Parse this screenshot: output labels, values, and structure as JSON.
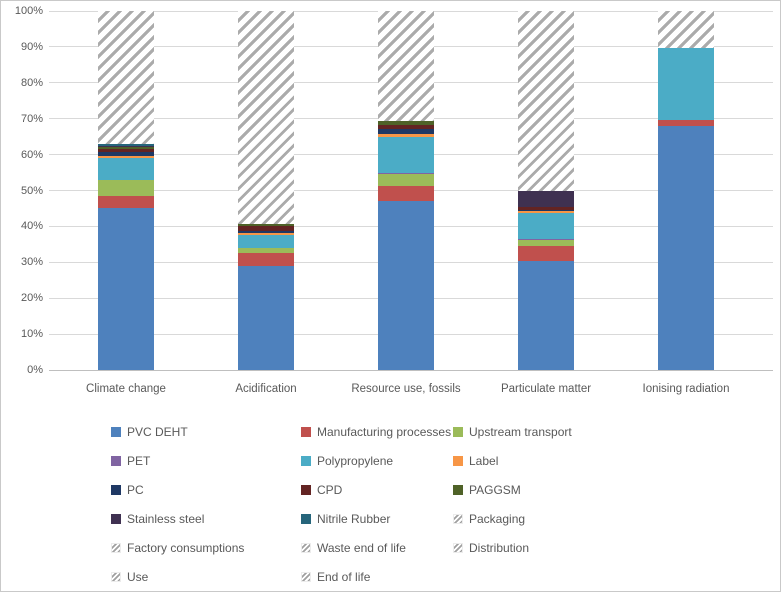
{
  "page": {
    "background": "#ffffff",
    "border_color": "#c9c9c9",
    "text_color": "#595959",
    "gridline_color": "#d9d9d9",
    "axis_line_color": "#bfbfbf"
  },
  "chart_data": {
    "type": "bar",
    "variant": "stacked-100-percent",
    "title": "",
    "xlabel": "",
    "ylabel": "",
    "ylim": [
      0,
      100
    ],
    "ytick_step": 10,
    "grid": true,
    "legend_position": "bottom",
    "yticks": [
      "0%",
      "10%",
      "20%",
      "30%",
      "40%",
      "50%",
      "60%",
      "70%",
      "80%",
      "90%",
      "100%"
    ],
    "categories": [
      "Climate change",
      "Acidification",
      "Resource use, fossils",
      "Particulate matter",
      "Ionising radiation"
    ],
    "series": [
      {
        "name": "PVC DEHT",
        "color": "#4e81bd",
        "values": [
          45.0,
          29.0,
          47.0,
          30.5,
          68.0
        ]
      },
      {
        "name": "Manufacturing processes",
        "color": "#c0504d",
        "values": [
          3.5,
          3.6,
          4.3,
          4.0,
          1.7
        ]
      },
      {
        "name": "Upstream transport",
        "color": "#9bbb59",
        "values": [
          4.5,
          1.5,
          3.4,
          1.9,
          0
        ]
      },
      {
        "name": "PET",
        "color": "#8064a2",
        "values": [
          0,
          0,
          0.3,
          0.2,
          0
        ]
      },
      {
        "name": "Polypropylene",
        "color": "#4bacc6",
        "values": [
          6.0,
          3.4,
          10.0,
          7.0,
          20.1
        ]
      },
      {
        "name": "Label",
        "color": "#f79646",
        "values": [
          0.5,
          0.6,
          0.8,
          0.8,
          0
        ]
      },
      {
        "name": "PC",
        "color": "#1f3864",
        "values": [
          1.2,
          0.5,
          1.2,
          0.3,
          0
        ]
      },
      {
        "name": "CPD",
        "color": "#632423",
        "values": [
          0.8,
          1.6,
          1.2,
          0.8,
          0
        ]
      },
      {
        "name": "PAGGSM",
        "color": "#4f6228",
        "values": [
          0.6,
          0.5,
          1.1,
          0,
          0
        ]
      },
      {
        "name": "Stainless steel",
        "color": "#3f3151",
        "values": [
          0.4,
          0,
          0,
          4.5,
          0
        ]
      },
      {
        "name": "Nitrile Rubber",
        "color": "#26657b",
        "values": [
          0.5,
          0,
          0,
          0,
          0
        ]
      }
    ],
    "hatched_series": {
      "names": [
        "Packaging",
        "Factory consumptions",
        "Waste end of life",
        "Distribution",
        "Use",
        "End of life"
      ],
      "pattern": "gray-diagonal-stripes",
      "stripe_color": "#ababab",
      "note": "Individual hatched series are not visually separable; combined remainder to 100% per category.",
      "remainder_values": [
        37.0,
        59.3,
        30.7,
        50.0,
        10.2
      ]
    }
  },
  "legend": {
    "items": [
      {
        "label": "PVC DEHT",
        "type": "color",
        "color": "#4e81bd"
      },
      {
        "label": "Manufacturing processes",
        "type": "color",
        "color": "#c0504d"
      },
      {
        "label": "Upstream transport",
        "type": "color",
        "color": "#9bbb59"
      },
      {
        "label": "PET",
        "type": "color",
        "color": "#8064a2"
      },
      {
        "label": "Polypropylene",
        "type": "color",
        "color": "#4bacc6"
      },
      {
        "label": "Label",
        "type": "color",
        "color": "#f79646"
      },
      {
        "label": "PC",
        "type": "color",
        "color": "#1f3864"
      },
      {
        "label": "CPD",
        "type": "color",
        "color": "#632423"
      },
      {
        "label": "PAGGSM",
        "type": "color",
        "color": "#4f6228"
      },
      {
        "label": "Stainless steel",
        "type": "color",
        "color": "#3f3151"
      },
      {
        "label": "Nitrile Rubber",
        "type": "color",
        "color": "#26657b"
      },
      {
        "label": "Packaging",
        "type": "hatch"
      },
      {
        "label": "Factory consumptions",
        "type": "hatch"
      },
      {
        "label": "Waste end of life",
        "type": "hatch"
      },
      {
        "label": "Distribution",
        "type": "hatch"
      },
      {
        "label": "Use",
        "type": "hatch"
      },
      {
        "label": "End of life",
        "type": "hatch"
      }
    ]
  }
}
